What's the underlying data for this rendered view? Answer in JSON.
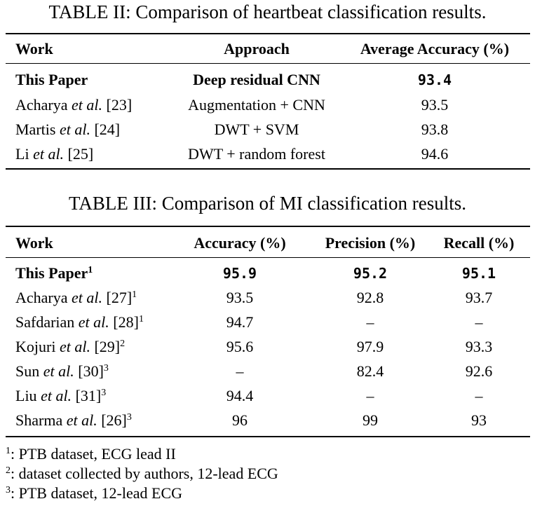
{
  "table2": {
    "caption": "TABLE II: Comparison of heartbeat classification results.",
    "headers": [
      "Work",
      "Approach",
      "Average Accuracy (%)"
    ],
    "rows": [
      {
        "author": "This Paper",
        "etal": "",
        "ref": "",
        "approach": "Deep residual CNN",
        "accuracy": "93.4"
      },
      {
        "author": "Acharya",
        "etal": "et al.",
        "ref": "[23]",
        "approach": "Augmentation + CNN",
        "accuracy": "93.5"
      },
      {
        "author": "Martis",
        "etal": "et al.",
        "ref": "[24]",
        "approach": "DWT + SVM",
        "accuracy": "93.8"
      },
      {
        "author": "Li",
        "etal": "et al.",
        "ref": "[25]",
        "approach": "DWT + random forest",
        "accuracy": "94.6"
      }
    ]
  },
  "table3": {
    "caption": "TABLE III: Comparison of MI classification results.",
    "headers": [
      "Work",
      "Accuracy (%)",
      "Precision (%)",
      "Recall (%)"
    ],
    "rows": [
      {
        "author": "This Paper",
        "etal": "",
        "ref": "",
        "sup": "1",
        "accuracy": "95.9",
        "precision": "95.2",
        "recall": "95.1"
      },
      {
        "author": "Acharya",
        "etal": "et al.",
        "ref": "[27]",
        "sup": "1",
        "accuracy": "93.5",
        "precision": "92.8",
        "recall": "93.7"
      },
      {
        "author": "Safdarian",
        "etal": "et al.",
        "ref": "[28]",
        "sup": "1",
        "accuracy": "94.7",
        "precision": "–",
        "recall": "–"
      },
      {
        "author": "Kojuri",
        "etal": "et al.",
        "ref": "[29]",
        "sup": "2",
        "accuracy": "95.6",
        "precision": "97.9",
        "recall": "93.3"
      },
      {
        "author": "Sun",
        "etal": "et al.",
        "ref": "[30]",
        "sup": "3",
        "accuracy": "–",
        "precision": "82.4",
        "recall": "92.6"
      },
      {
        "author": "Liu",
        "etal": "et al.",
        "ref": "[31]",
        "sup": "3",
        "accuracy": "94.4",
        "precision": "–",
        "recall": "–"
      },
      {
        "author": "Sharma",
        "etal": "et al.",
        "ref": "[26]",
        "sup": "3",
        "accuracy": "96",
        "precision": "99",
        "recall": "93"
      }
    ]
  },
  "footnotes": [
    {
      "mark": "1",
      "text": ": PTB dataset, ECG lead II"
    },
    {
      "mark": "2",
      "text": ": dataset collected by authors, 12-lead ECG"
    },
    {
      "mark": "3",
      "text": ": PTB dataset, 12-lead ECG"
    }
  ]
}
